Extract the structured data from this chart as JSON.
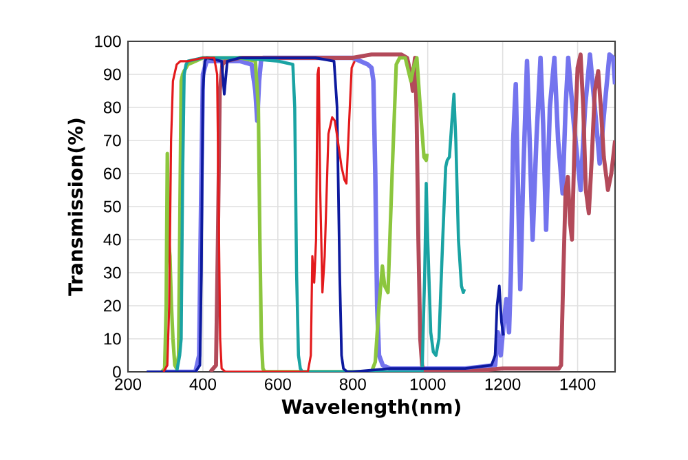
{
  "chart_data": {
    "type": "line",
    "xlabel": "Wavelength(nm)",
    "ylabel": "Transmission(%)",
    "xlim": [
      200,
      1500
    ],
    "ylim": [
      0,
      100
    ],
    "xticks": [
      200,
      400,
      600,
      800,
      1000,
      1200,
      1400
    ],
    "yticks": [
      0,
      10,
      20,
      30,
      40,
      50,
      60,
      70,
      80,
      90,
      100
    ],
    "grid": true,
    "marker": "none",
    "line_style": "solid",
    "series": [
      {
        "color": "#7474ee",
        "x": [
          300,
          380,
          390,
          395,
          400,
          410,
          450,
          500,
          530,
          540,
          545,
          550,
          555,
          560,
          600,
          700,
          800,
          840,
          850,
          855,
          860,
          865,
          870,
          880,
          900,
          1000,
          1100,
          1180,
          1187,
          1195,
          1203,
          1210,
          1217,
          1222,
          1228,
          1235,
          1240,
          1247,
          1255,
          1265,
          1272,
          1280,
          1290,
          1301,
          1308,
          1316,
          1326,
          1338,
          1348,
          1360,
          1368,
          1375,
          1390,
          1408,
          1420,
          1433,
          1446,
          1459,
          1472,
          1485,
          1495,
          1500
        ],
        "values": [
          0,
          0,
          5,
          50,
          90,
          94,
          94,
          94,
          93,
          85,
          76,
          88,
          94,
          95,
          95,
          95,
          95,
          93,
          92,
          88,
          60,
          20,
          5,
          2,
          1,
          1,
          1,
          2,
          12,
          5,
          15,
          22,
          12,
          30,
          70,
          87,
          60,
          25,
          60,
          94,
          70,
          40,
          70,
          95,
          75,
          43,
          80,
          95,
          70,
          54,
          80,
          95,
          75,
          55,
          80,
          96,
          80,
          63,
          80,
          96,
          95,
          87
        ]
      },
      {
        "color": "#b34a5a",
        "x": [
          420,
          435,
          440,
          445,
          452,
          460,
          500,
          600,
          700,
          800,
          850,
          900,
          930,
          945,
          955,
          960,
          963,
          966,
          970,
          975,
          980,
          985,
          990,
          1000,
          1100,
          1200,
          1300,
          1350,
          1356,
          1362,
          1368,
          1374,
          1380,
          1385,
          1392,
          1400,
          1408,
          1415,
          1422,
          1430,
          1438,
          1446,
          1455,
          1462,
          1470,
          1481,
          1490,
          1500
        ],
        "values": [
          0,
          2,
          40,
          85,
          93,
          94,
          95,
          95,
          95,
          95,
          96,
          96,
          96,
          95,
          90,
          85,
          92,
          95,
          80,
          40,
          10,
          2,
          0,
          0,
          0,
          1,
          1,
          1,
          2,
          30,
          55,
          59,
          45,
          40,
          70,
          92,
          96,
          80,
          55,
          48,
          65,
          85,
          91,
          80,
          65,
          55,
          60,
          70
        ]
      },
      {
        "color": "#8cc63e",
        "x": [
          290,
          298,
          302,
          305,
          308,
          312,
          316,
          320,
          325,
          330,
          335,
          338,
          342,
          346,
          350,
          360,
          380,
          400,
          450,
          500,
          540,
          548,
          552,
          556,
          560,
          565,
          600,
          700,
          800,
          850,
          860,
          870,
          879,
          885,
          894,
          905,
          916,
          925,
          940,
          955,
          962,
          971,
          980,
          990,
          996,
          998
        ],
        "values": [
          0,
          1,
          20,
          66,
          40,
          35,
          20,
          10,
          2,
          1,
          5,
          40,
          88,
          90,
          91,
          93,
          94,
          95,
          95,
          95,
          94,
          80,
          40,
          10,
          1,
          0,
          0,
          0,
          0,
          0,
          3,
          20,
          32,
          26,
          24,
          60,
          93,
          95,
          95,
          88,
          92,
          95,
          80,
          65,
          64,
          66
        ]
      },
      {
        "color": "#1aa3a3",
        "x": [
          330,
          338,
          342,
          346,
          350,
          355,
          360,
          400,
          500,
          600,
          640,
          645,
          650,
          655,
          660,
          665,
          700,
          800,
          900,
          985,
          992,
          996,
          1000,
          1008,
          1015,
          1022,
          1030,
          1040,
          1048,
          1052,
          1058,
          1064,
          1070,
          1075,
          1082,
          1090,
          1095,
          1098
        ],
        "values": [
          0,
          5,
          10,
          60,
          90,
          93,
          94,
          95,
          95,
          94,
          93,
          80,
          30,
          5,
          1,
          0,
          0,
          0,
          0,
          0,
          30,
          57,
          40,
          12,
          6,
          5,
          10,
          40,
          62,
          64,
          65,
          75,
          84,
          70,
          40,
          26,
          24,
          25
        ]
      },
      {
        "color": "#0d1a9e",
        "x": [
          250,
          380,
          392,
          396,
          400,
          405,
          410,
          450,
          457,
          465,
          500,
          600,
          700,
          750,
          758,
          765,
          770,
          775,
          785,
          800,
          900,
          1000,
          1100,
          1170,
          1180,
          1185,
          1191,
          1197,
          1202
        ],
        "values": [
          0,
          0,
          2,
          30,
          85,
          94,
          95,
          94,
          84,
          94,
          95,
          95,
          95,
          94,
          80,
          30,
          5,
          1,
          0,
          0,
          1,
          1,
          1,
          2,
          5,
          20,
          26,
          15,
          11
        ]
      },
      {
        "color": "#e31a1c",
        "x": [
          295,
          305,
          310,
          315,
          320,
          330,
          340,
          360,
          400,
          430,
          438,
          442,
          446,
          450,
          460,
          600,
          680,
          688,
          692,
          697,
          702,
          706,
          709,
          713,
          719,
          725,
          735,
          745,
          752,
          760,
          770,
          778,
          783,
          790,
          797,
          805
        ],
        "values": [
          0,
          2,
          20,
          70,
          88,
          93,
          94,
          94,
          95,
          95,
          90,
          50,
          10,
          1,
          0,
          0,
          0,
          5,
          35,
          27,
          40,
          90,
          92,
          55,
          24,
          35,
          72,
          77,
          76,
          70,
          62,
          58,
          57,
          75,
          92,
          94
        ]
      }
    ]
  }
}
